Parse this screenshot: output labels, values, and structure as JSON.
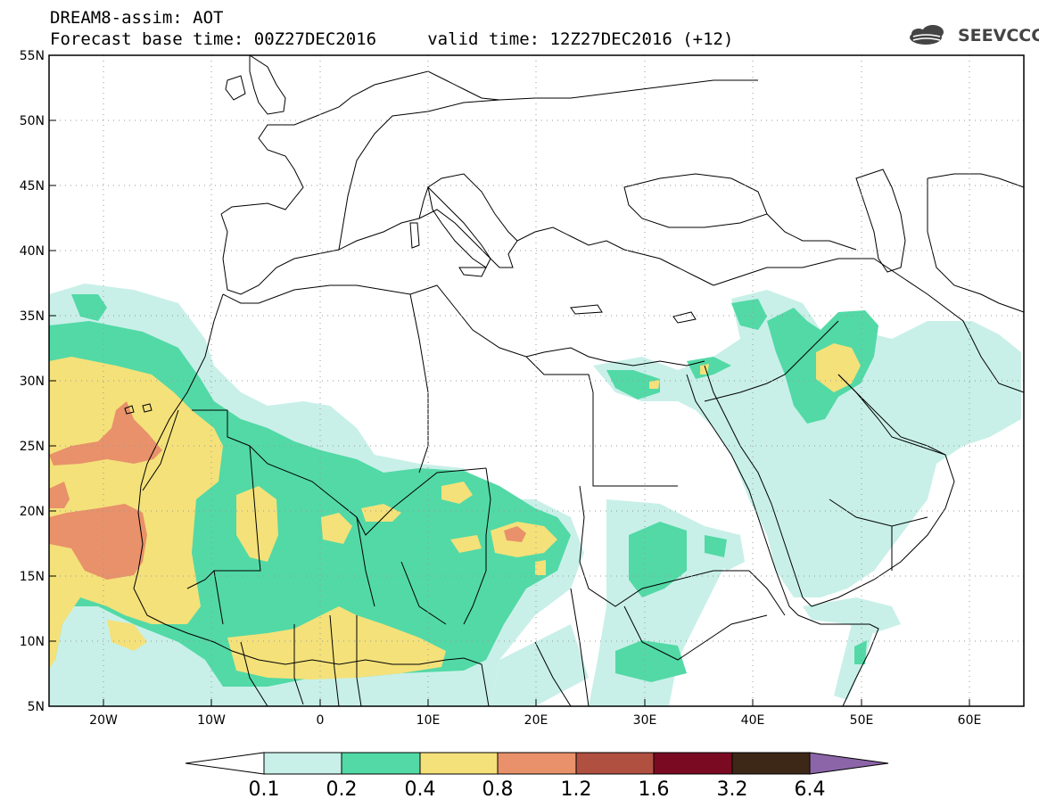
{
  "header": {
    "line1": "DREAM8-assim: AOT",
    "line2": "Forecast base time: 00Z27DEC2016     valid time: 12Z27DEC2016 (+12)",
    "logo": "SEEVCCC"
  },
  "map": {
    "lon_range": [
      -25,
      65
    ],
    "lat_range": [
      5,
      55
    ],
    "lat_ticks": [
      "5N",
      "10N",
      "15N",
      "20N",
      "25N",
      "30N",
      "35N",
      "40N",
      "45N",
      "50N",
      "55N"
    ],
    "lon_ticks": [
      "20W",
      "10W",
      "0",
      "10E",
      "20E",
      "30E",
      "40E",
      "50E",
      "60E"
    ],
    "grid": "dotted"
  },
  "legend": {
    "labels": [
      "0.1",
      "0.2",
      "0.4",
      "0.8",
      "1.2",
      "1.6",
      "3.2",
      "6.4"
    ],
    "colors": [
      "#ffffff",
      "#c8f0e8",
      "#52d9a6",
      "#f4e17a",
      "#e8916a",
      "#b05040",
      "#7a0a22",
      "#3d2817",
      "#8c65a8"
    ]
  },
  "colors": {
    "c01": "#c8f0e8",
    "c02": "#52d9a6",
    "c04": "#f4e17a",
    "c08": "#e8916a"
  }
}
